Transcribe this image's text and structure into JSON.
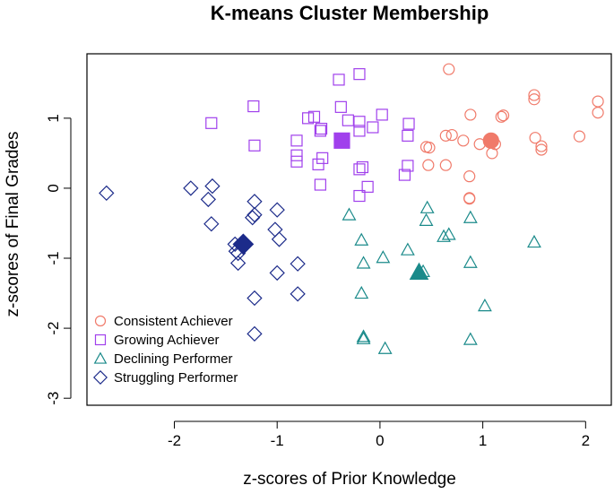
{
  "chart_data": {
    "type": "scatter",
    "title": "K-means Cluster Membership",
    "xlabel": "z-scores of Prior Knowledge",
    "ylabel": "z-scores of Final Grades",
    "xlim": [
      -2.85,
      2.25
    ],
    "ylim": [
      -3.1,
      1.92
    ],
    "xticks": [
      -2,
      -1,
      0,
      1,
      2
    ],
    "yticks": [
      -3,
      -2,
      -1,
      0,
      1
    ],
    "xtick_labels": [
      "-2",
      "-1",
      "0",
      "1",
      "2"
    ],
    "ytick_labels": [
      "-3",
      "-2",
      "-1",
      "0",
      "1"
    ],
    "grid": false,
    "legend_position": "bottom-left",
    "series": [
      {
        "name": "Consistent Achiever",
        "color": "#f07a6a",
        "marker": "circle",
        "centroid": [
          1.08,
          0.68
        ],
        "x": [
          0.67,
          1.5,
          1.5,
          1.2,
          1.18,
          0.88,
          2.12,
          2.12,
          0.7,
          0.64,
          0.81,
          0.97,
          1.12,
          1.51,
          1.94,
          1.57,
          1.57,
          0.45,
          0.48,
          0.47,
          1.09,
          0.64,
          0.87,
          0.87,
          0.87
        ],
        "y": [
          1.7,
          1.33,
          1.27,
          1.04,
          1.02,
          1.05,
          1.24,
          1.08,
          0.76,
          0.75,
          0.68,
          0.63,
          0.63,
          0.72,
          0.74,
          0.6,
          0.55,
          0.59,
          0.58,
          0.33,
          0.5,
          0.33,
          0.17,
          -0.14,
          -0.15
        ]
      },
      {
        "name": "Growing Achiever",
        "color": "#a040ec",
        "marker": "square",
        "centroid": [
          -0.37,
          0.68
        ],
        "x": [
          -0.2,
          -0.4,
          -0.38,
          -1.64,
          -1.23,
          -0.7,
          -0.64,
          -0.58,
          -0.31,
          -0.2,
          -0.07,
          0.02,
          0.28,
          0.27,
          -0.57,
          -0.37,
          -0.2,
          -0.81,
          -0.81,
          -0.81,
          -0.56,
          -0.6,
          -1.22,
          -0.17,
          -0.2,
          -0.2,
          0.27,
          0.24,
          -0.12,
          -0.58
        ],
        "y": [
          1.63,
          1.55,
          1.16,
          0.93,
          1.17,
          1.0,
          1.02,
          0.82,
          0.97,
          0.95,
          0.87,
          1.05,
          0.92,
          0.75,
          0.85,
          0.68,
          0.82,
          0.68,
          0.47,
          0.38,
          0.43,
          0.34,
          0.61,
          0.3,
          0.27,
          -0.11,
          0.32,
          0.19,
          0.02,
          0.05
        ]
      },
      {
        "name": "Declining Performer",
        "color": "#1a8a8a",
        "marker": "triangle",
        "centroid": [
          0.38,
          -1.2
        ],
        "x": [
          -0.3,
          -0.18,
          0.46,
          0.45,
          0.88,
          0.62,
          0.67,
          1.5,
          -0.16,
          0.27,
          0.03,
          0.42,
          0.88,
          -0.18,
          1.02,
          -0.16,
          -0.16,
          0.88,
          0.05
        ],
        "y": [
          -0.38,
          -0.74,
          -0.28,
          -0.46,
          -0.42,
          -0.69,
          -0.66,
          -0.77,
          -1.07,
          -0.88,
          -0.99,
          -1.19,
          -1.06,
          -1.5,
          -1.68,
          -2.12,
          -2.15,
          -2.16,
          -2.29
        ]
      },
      {
        "name": "Struggling Performer",
        "color": "#1c2b8a",
        "marker": "diamond",
        "centroid": [
          -1.33,
          -0.8
        ],
        "x": [
          -2.66,
          -1.84,
          -1.63,
          -1.67,
          -1.64,
          -1.22,
          -1.0,
          -1.22,
          -1.24,
          -1.02,
          -1.41,
          -1.38,
          -0.98,
          -1.4,
          -1.38,
          -0.8,
          -1.0,
          -1.22,
          -0.8,
          -1.22
        ],
        "y": [
          -0.07,
          0.0,
          0.03,
          -0.16,
          -0.51,
          -0.19,
          -0.31,
          -0.38,
          -0.42,
          -0.59,
          -0.8,
          -0.93,
          -0.73,
          -0.9,
          -1.07,
          -1.08,
          -1.21,
          -1.57,
          -1.51,
          -2.08
        ]
      }
    ]
  }
}
